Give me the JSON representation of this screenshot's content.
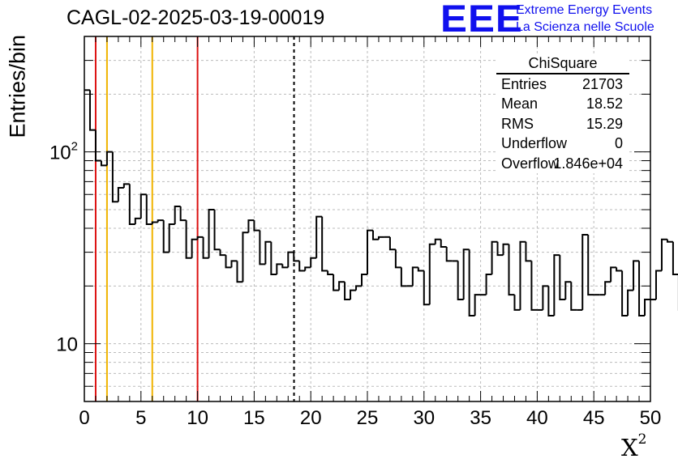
{
  "header": {
    "title": "CAGL-02-2025-03-19-00019",
    "logo_text": "EEE",
    "logo_line1": "Extreme Energy Events",
    "logo_line2": "La Scienza nelle Scuole"
  },
  "stats_box": {
    "title": "ChiSquare",
    "rows": [
      {
        "key": "Entries",
        "value": "21703"
      },
      {
        "key": "Mean",
        "value": "18.52"
      },
      {
        "key": "RMS",
        "value": "15.29"
      },
      {
        "key": "Underflow",
        "value": "0"
      },
      {
        "key": "Overflow",
        "value": "1.846e+04"
      }
    ]
  },
  "colors": {
    "red_line": "#dd1111",
    "yellow_line": "#f0b400",
    "hist": "#000000",
    "grid": "#bbbbbb",
    "logo": "#1010ee"
  },
  "chart_data": {
    "type": "histogram",
    "title": "CAGL-02-2025-03-19-00019",
    "xlabel": "X",
    "xlabel_sup": "2",
    "ylabel": "Entries/bin",
    "xlim": [
      0,
      50
    ],
    "ylim": [
      5,
      400
    ],
    "yscale": "log",
    "bin_width": 0.5,
    "x_ticks": [
      0,
      5,
      10,
      15,
      20,
      25,
      30,
      35,
      40,
      45,
      50
    ],
    "y_ticks": [
      {
        "value": 10,
        "base": "10",
        "exp": ""
      },
      {
        "value": 100,
        "base": "10",
        "exp": "2"
      }
    ],
    "values": [
      210,
      130,
      90,
      85,
      100,
      55,
      65,
      68,
      42,
      45,
      60,
      42,
      43,
      44,
      30,
      42,
      52,
      44,
      28,
      35,
      36,
      28,
      50,
      31,
      29,
      25,
      27,
      21,
      38,
      44,
      39,
      26,
      34,
      23,
      26,
      25,
      30,
      27,
      24,
      25,
      28,
      46,
      24,
      23,
      19,
      21,
      17,
      19,
      20,
      23,
      39,
      35,
      36,
      36,
      31,
      25,
      20,
      20,
      25,
      24,
      16,
      33,
      35,
      32,
      27,
      27,
      17,
      31,
      14,
      18,
      18,
      23,
      34,
      29,
      33,
      18,
      15,
      34,
      27,
      15,
      15,
      20,
      14,
      29,
      17,
      21,
      15,
      15,
      37,
      18,
      18,
      18,
      21,
      25,
      24,
      14,
      19,
      27,
      14,
      17,
      17,
      24,
      35,
      34,
      23,
      15,
      12,
      23,
      12,
      12,
      19,
      14,
      18,
      26,
      23,
      25,
      18,
      16,
      28,
      12,
      10,
      12,
      15,
      14,
      25,
      15,
      20,
      35
    ],
    "vertical_lines": [
      {
        "x": 1,
        "color": "red",
        "style": "solid"
      },
      {
        "x": 2,
        "color": "yellow",
        "style": "solid"
      },
      {
        "x": 6,
        "color": "yellow",
        "style": "solid"
      },
      {
        "x": 10,
        "color": "red",
        "style": "solid"
      },
      {
        "x": 18.52,
        "color": "black",
        "style": "dashed"
      }
    ],
    "grid": true
  }
}
